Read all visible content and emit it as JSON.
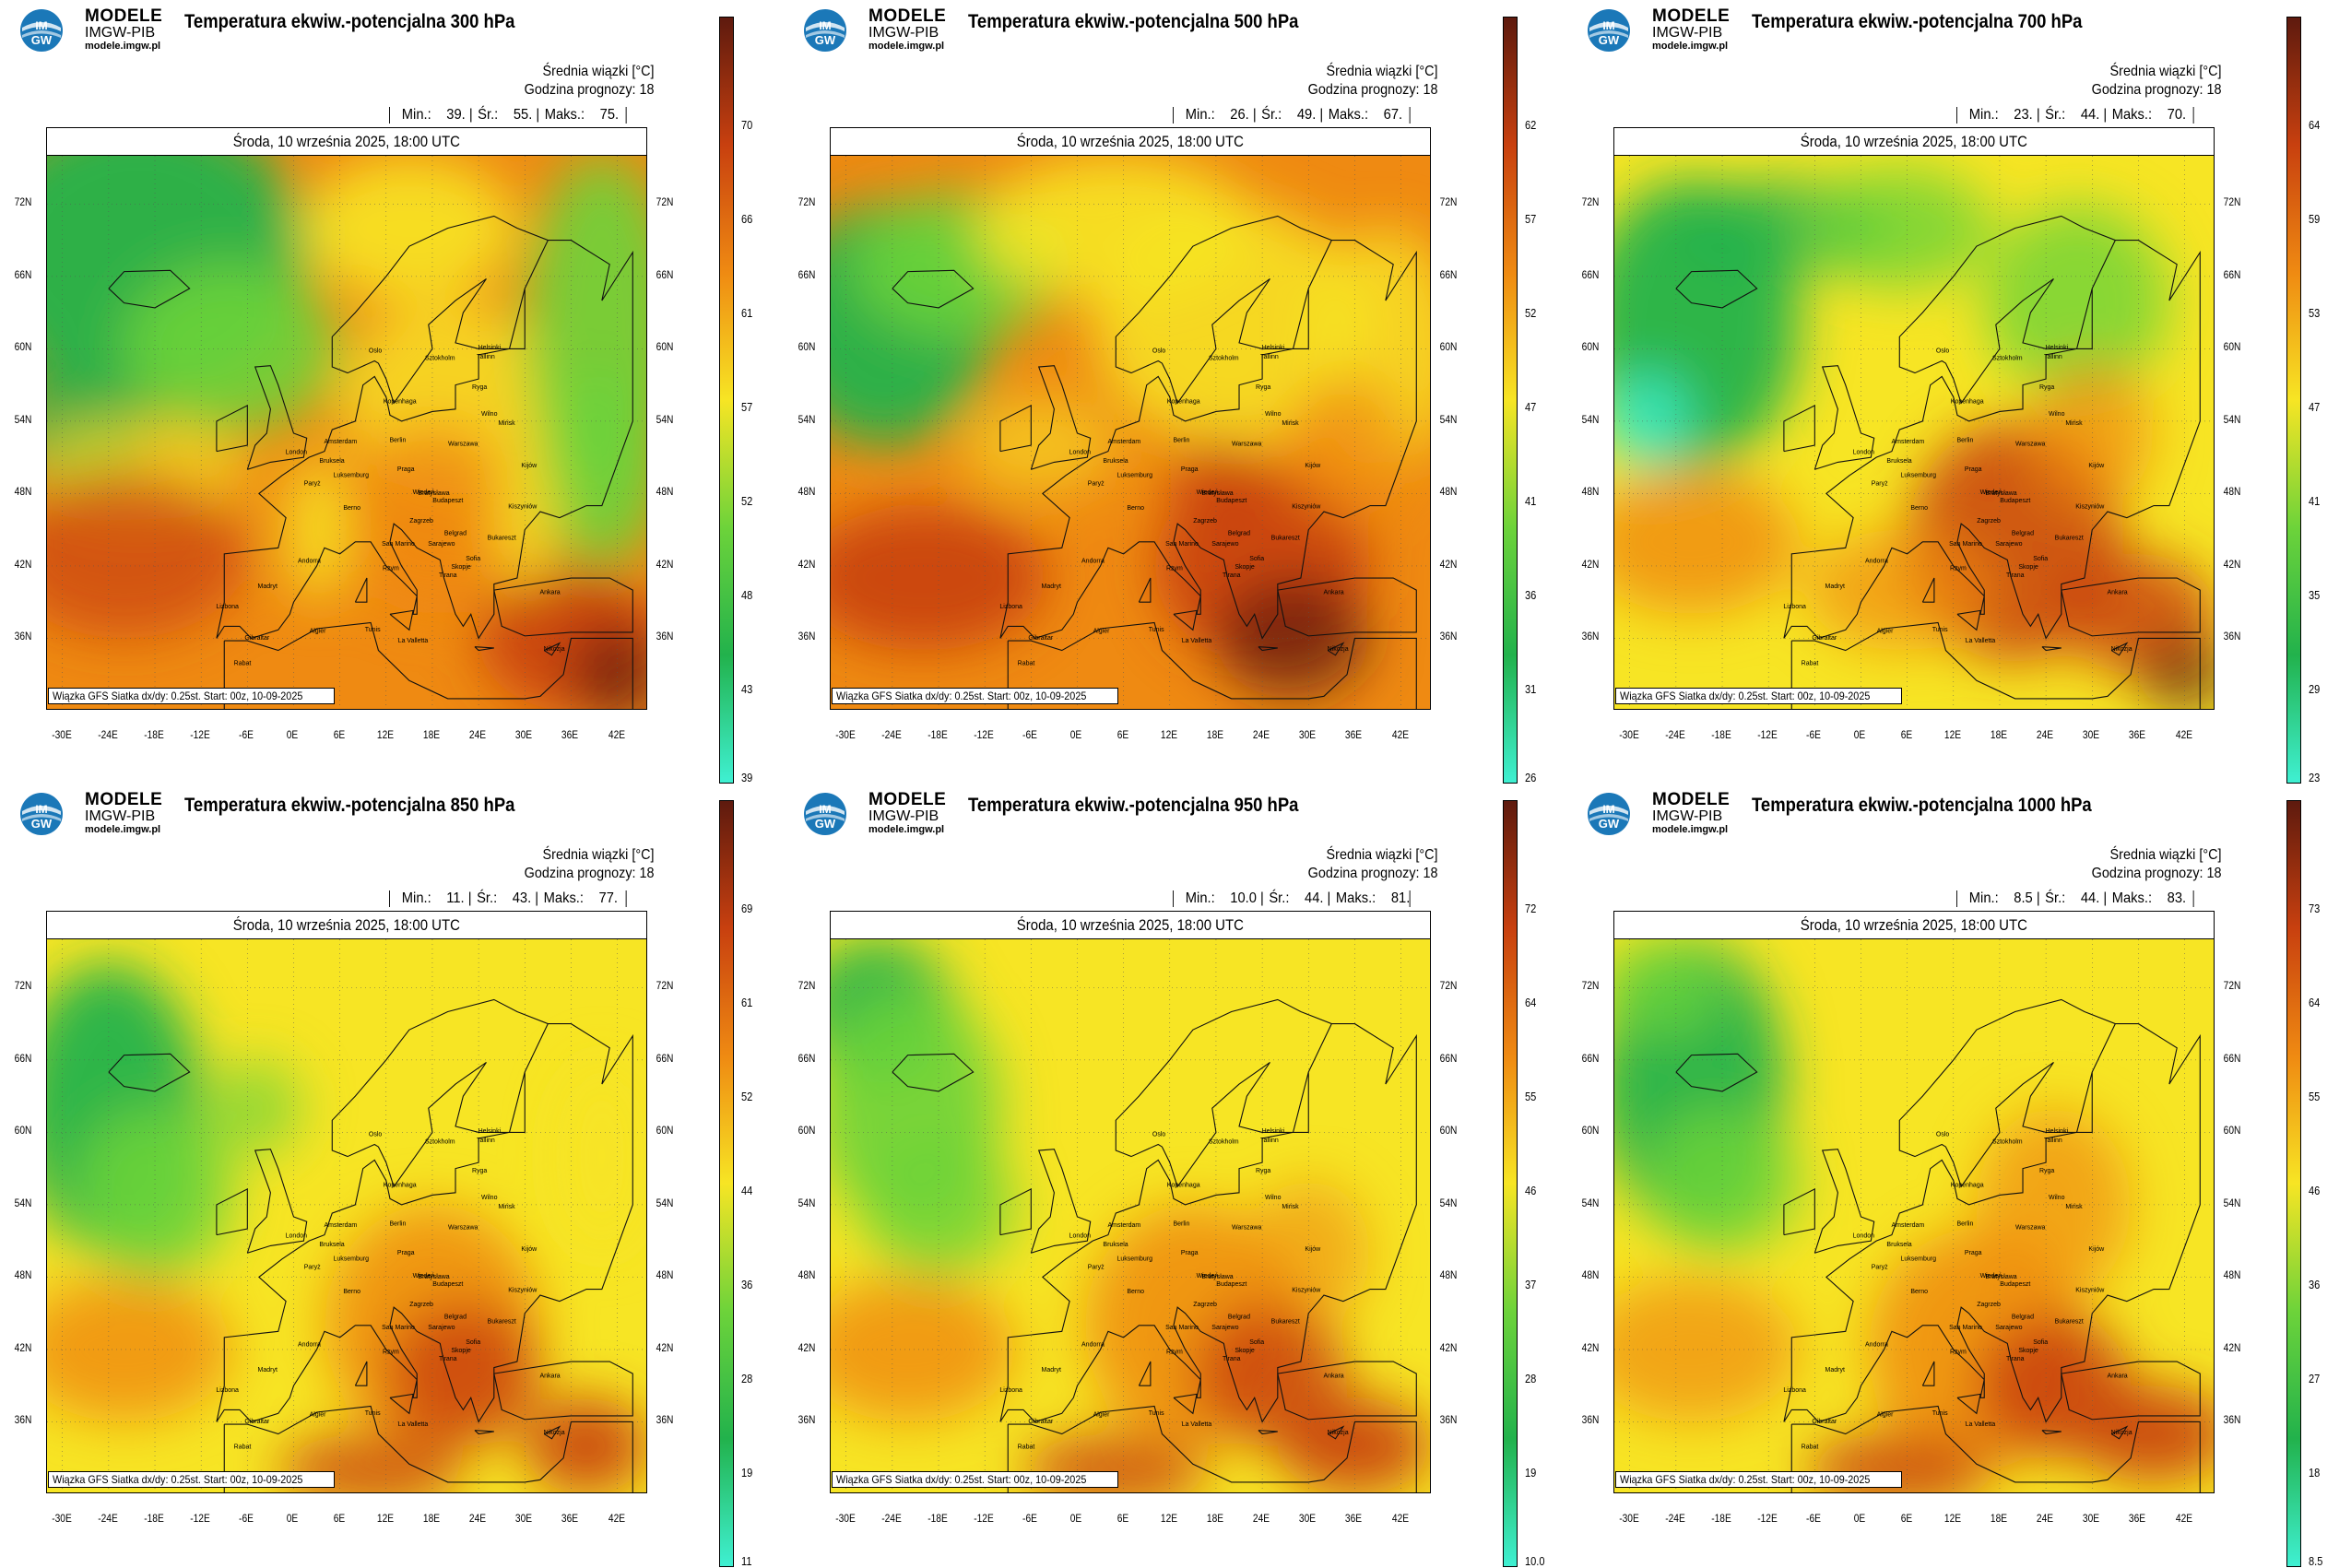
{
  "brand": {
    "name": "MODELE",
    "org": "IMGW-PIB",
    "url": "modele.imgw.pl",
    "logo_text": "IMGW"
  },
  "common": {
    "info_line1": "Średnia wiązki [°C]",
    "info_line2": "Godzina prognozy: 18",
    "date": "Środa, 10 września 2025, 18:00 UTC",
    "footer": "Wiązka GFS Siatka dx/dy: 0.25st. Start: 00z, 10-09-2025",
    "lat_labels": [
      "72N",
      "66N",
      "60N",
      "54N",
      "48N",
      "42N",
      "36N"
    ],
    "lon_labels": [
      "-30E",
      "-24E",
      "-18E",
      "-12E",
      "-6E",
      "0E",
      "6E",
      "12E",
      "18E",
      "24E",
      "30E",
      "36E",
      "42E"
    ],
    "cities": [
      "Oslo",
      "Sztokholm",
      "Helsinki",
      "Tallinn",
      "Ryga",
      "Kopenhaga",
      "Wilno",
      "Amsterdam",
      "Berlin",
      "Warszawa",
      "London",
      "Bruksela",
      "Mińsk",
      "Luksemburg",
      "Paryż",
      "Praga",
      "Kijów",
      "Berno",
      "Wiedeń",
      "Bratysława",
      "Budapeszt",
      "Kiszyniów",
      "Zagrzeb",
      "Belgrad",
      "Bukareszt",
      "Andorra",
      "San Marino",
      "Sarajewo",
      "Sofia",
      "Skopje",
      "Rzym",
      "Tirana",
      "Madryt",
      "Ankara",
      "Lizbona",
      "Algier",
      "Tunis",
      "Gibraltar",
      "Rabat",
      "La Valletta",
      "Nikozja"
    ],
    "colors": {
      "low": "#3ff0d2",
      "mid_green": "#22b24c",
      "green": "#6dd33a",
      "yellow": "#f7e524",
      "orange": "#ef8a12",
      "red": "#c8400f",
      "dark": "#5e1a0e"
    }
  },
  "panels": [
    {
      "title": "Temperatura ekwiw.-potencjalna 300 hPa",
      "stats": {
        "min_label": "Min.:",
        "min": "39.",
        "avg_label": "Śr.:",
        "avg": "55.",
        "max_label": "Maks.:",
        "max": "75."
      },
      "colorbar": [
        "70",
        "66",
        "61",
        "57",
        "52",
        "48",
        "43",
        "39"
      ]
    },
    {
      "title": "Temperatura ekwiw.-potencjalna 500 hPa",
      "stats": {
        "min_label": "Min.:",
        "min": "26.",
        "avg_label": "Śr.:",
        "avg": "49.",
        "max_label": "Maks.:",
        "max": "67."
      },
      "colorbar": [
        "62",
        "57",
        "52",
        "47",
        "41",
        "36",
        "31",
        "26"
      ]
    },
    {
      "title": "Temperatura ekwiw.-potencjalna 700 hPa",
      "stats": {
        "min_label": "Min.:",
        "min": "23.",
        "avg_label": "Śr.:",
        "avg": "44.",
        "max_label": "Maks.:",
        "max": "70."
      },
      "colorbar": [
        "64",
        "59",
        "53",
        "47",
        "41",
        "35",
        "29",
        "23"
      ]
    },
    {
      "title": "Temperatura ekwiw.-potencjalna 850 hPa",
      "stats": {
        "min_label": "Min.:",
        "min": "11.",
        "avg_label": "Śr.:",
        "avg": "43.",
        "max_label": "Maks.:",
        "max": "77."
      },
      "colorbar": [
        "69",
        "61",
        "52",
        "44",
        "36",
        "28",
        "19",
        "11"
      ]
    },
    {
      "title": "Temperatura ekwiw.-potencjalna 950 hPa",
      "stats": {
        "min_label": "Min.:",
        "min": "10.0",
        "avg_label": "Śr.:",
        "avg": "44.",
        "max_label": "Maks.:",
        "max": "81."
      },
      "colorbar": [
        "72",
        "64",
        "55",
        "46",
        "37",
        "28",
        "19",
        "10.0"
      ]
    },
    {
      "title": "Temperatura ekwiw.-potencjalna 1000 hPa",
      "stats": {
        "min_label": "Min.:",
        "min": "8.5",
        "avg_label": "Śr.:",
        "avg": "44.",
        "max_label": "Maks.:",
        "max": "83."
      },
      "colorbar": [
        "73",
        "64",
        "55",
        "46",
        "36",
        "27",
        "18",
        "8.5"
      ]
    }
  ]
}
